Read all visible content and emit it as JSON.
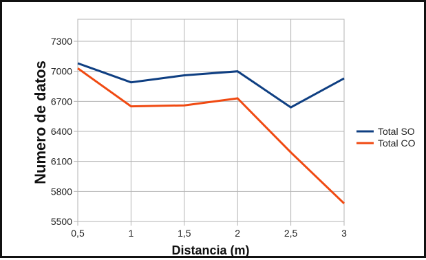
{
  "chart_data": {
    "type": "line",
    "title": "",
    "xlabel": "Distancia (m)",
    "ylabel": "Numero de datos",
    "x": [
      0.5,
      1,
      1.5,
      2,
      2.5,
      3
    ],
    "x_tick_labels": [
      "0,5",
      "1",
      "1,5",
      "2",
      "2,5",
      "3"
    ],
    "y_ticks": [
      5500,
      5800,
      6100,
      6400,
      6700,
      7000,
      7300
    ],
    "ylim": [
      5500,
      7520
    ],
    "xlim": [
      0.5,
      3
    ],
    "grid": true,
    "legend_position": "right",
    "series": [
      {
        "name": "Total SO",
        "color": "#0f3f82",
        "values": [
          7080,
          6890,
          6960,
          7000,
          6640,
          6930
        ]
      },
      {
        "name": "Total CO",
        "color": "#f04a12",
        "values": [
          7030,
          6650,
          6660,
          6730,
          6190,
          5680
        ]
      }
    ]
  }
}
